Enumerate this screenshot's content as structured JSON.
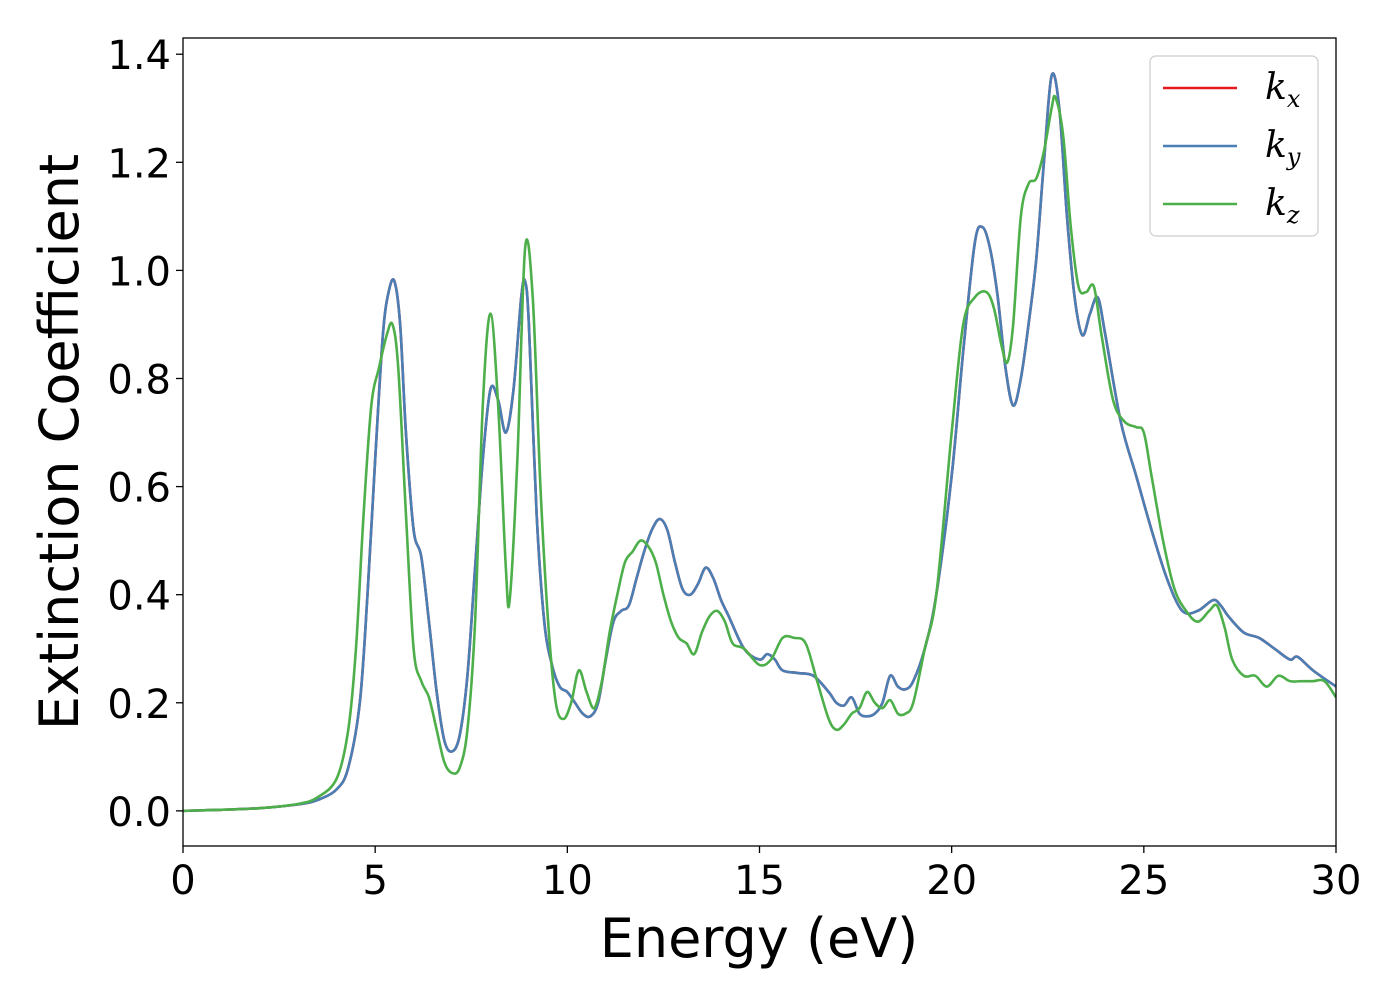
{
  "chart_data": {
    "type": "line",
    "xlabel": "Energy (eV)",
    "ylabel": "Extinction Coefficient",
    "xlim": [
      0,
      30
    ],
    "ylim": [
      -0.065,
      1.43
    ],
    "xticks": [
      "0",
      "5",
      "10",
      "15",
      "20",
      "25",
      "30"
    ],
    "yticks": [
      "0.0",
      "0.2",
      "0.4",
      "0.6",
      "0.8",
      "1.0",
      "1.2",
      "1.4"
    ],
    "grid": false,
    "legend_position": "top-right",
    "series": [
      {
        "name": "k",
        "name_sub": "x",
        "color": "#e41a1c",
        "x": [
          0,
          1,
          2,
          3,
          3.5,
          4,
          4.3,
          4.6,
          4.8,
          5.0,
          5.2,
          5.35,
          5.5,
          5.65,
          5.8,
          6.0,
          6.2,
          6.4,
          6.6,
          6.8,
          7.0,
          7.2,
          7.4,
          7.6,
          7.8,
          8.0,
          8.2,
          8.4,
          8.6,
          8.8,
          8.9,
          9.0,
          9.2,
          9.4,
          9.6,
          9.8,
          10.0,
          10.2,
          10.4,
          10.6,
          10.8,
          11.0,
          11.2,
          11.4,
          11.6,
          11.8,
          12.0,
          12.2,
          12.4,
          12.6,
          12.8,
          13.0,
          13.2,
          13.4,
          13.6,
          13.8,
          14.0,
          14.2,
          14.6,
          15.0,
          15.2,
          15.4,
          15.6,
          16.0,
          16.4,
          16.8,
          17.0,
          17.2,
          17.4,
          17.6,
          17.8,
          18.0,
          18.2,
          18.4,
          18.6,
          18.8,
          19.0,
          19.3,
          19.6,
          20.0,
          20.3,
          20.6,
          20.8,
          21.0,
          21.2,
          21.4,
          21.6,
          21.8,
          22.0,
          22.2,
          22.4,
          22.6,
          22.8,
          23.0,
          23.2,
          23.4,
          23.6,
          23.8,
          24.0,
          24.4,
          24.8,
          25.2,
          25.6,
          26.0,
          26.4,
          26.8,
          27.0,
          27.2,
          27.6,
          28.0,
          28.4,
          28.8,
          29.0,
          29.4,
          30.0
        ],
        "y": [
          0.0,
          0.002,
          0.005,
          0.012,
          0.02,
          0.04,
          0.08,
          0.2,
          0.4,
          0.65,
          0.88,
          0.96,
          0.98,
          0.9,
          0.7,
          0.52,
          0.47,
          0.35,
          0.22,
          0.13,
          0.11,
          0.14,
          0.25,
          0.45,
          0.65,
          0.78,
          0.76,
          0.7,
          0.78,
          0.95,
          0.98,
          0.9,
          0.55,
          0.35,
          0.27,
          0.23,
          0.22,
          0.2,
          0.18,
          0.175,
          0.2,
          0.28,
          0.35,
          0.37,
          0.38,
          0.43,
          0.48,
          0.52,
          0.54,
          0.52,
          0.46,
          0.41,
          0.4,
          0.42,
          0.45,
          0.43,
          0.39,
          0.36,
          0.3,
          0.28,
          0.29,
          0.28,
          0.26,
          0.255,
          0.25,
          0.22,
          0.2,
          0.195,
          0.21,
          0.18,
          0.175,
          0.18,
          0.2,
          0.25,
          0.23,
          0.225,
          0.24,
          0.3,
          0.4,
          0.62,
          0.85,
          1.05,
          1.08,
          1.04,
          0.95,
          0.82,
          0.75,
          0.8,
          0.9,
          1.02,
          1.2,
          1.36,
          1.3,
          1.1,
          0.95,
          0.88,
          0.92,
          0.95,
          0.88,
          0.72,
          0.62,
          0.52,
          0.43,
          0.37,
          0.37,
          0.39,
          0.38,
          0.36,
          0.33,
          0.32,
          0.3,
          0.28,
          0.285,
          0.26,
          0.23
        ]
      },
      {
        "name": "k",
        "name_sub": "y",
        "color": "#4a7fb5",
        "x": [
          0,
          1,
          2,
          3,
          3.5,
          4,
          4.3,
          4.6,
          4.8,
          5.0,
          5.2,
          5.35,
          5.5,
          5.65,
          5.8,
          6.0,
          6.2,
          6.4,
          6.6,
          6.8,
          7.0,
          7.2,
          7.4,
          7.6,
          7.8,
          8.0,
          8.2,
          8.4,
          8.6,
          8.8,
          8.9,
          9.0,
          9.2,
          9.4,
          9.6,
          9.8,
          10.0,
          10.2,
          10.4,
          10.6,
          10.8,
          11.0,
          11.2,
          11.4,
          11.6,
          11.8,
          12.0,
          12.2,
          12.4,
          12.6,
          12.8,
          13.0,
          13.2,
          13.4,
          13.6,
          13.8,
          14.0,
          14.2,
          14.6,
          15.0,
          15.2,
          15.4,
          15.6,
          16.0,
          16.4,
          16.8,
          17.0,
          17.2,
          17.4,
          17.6,
          17.8,
          18.0,
          18.2,
          18.4,
          18.6,
          18.8,
          19.0,
          19.3,
          19.6,
          20.0,
          20.3,
          20.6,
          20.8,
          21.0,
          21.2,
          21.4,
          21.6,
          21.8,
          22.0,
          22.2,
          22.4,
          22.6,
          22.8,
          23.0,
          23.2,
          23.4,
          23.6,
          23.8,
          24.0,
          24.4,
          24.8,
          25.2,
          25.6,
          26.0,
          26.4,
          26.8,
          27.0,
          27.2,
          27.6,
          28.0,
          28.4,
          28.8,
          29.0,
          29.4,
          30.0
        ],
        "y": [
          0.0,
          0.002,
          0.005,
          0.012,
          0.02,
          0.04,
          0.08,
          0.2,
          0.4,
          0.65,
          0.88,
          0.96,
          0.98,
          0.9,
          0.7,
          0.52,
          0.47,
          0.35,
          0.22,
          0.13,
          0.11,
          0.14,
          0.25,
          0.45,
          0.65,
          0.78,
          0.76,
          0.7,
          0.78,
          0.95,
          0.98,
          0.9,
          0.55,
          0.35,
          0.27,
          0.23,
          0.22,
          0.2,
          0.18,
          0.175,
          0.2,
          0.28,
          0.35,
          0.37,
          0.38,
          0.43,
          0.48,
          0.52,
          0.54,
          0.52,
          0.46,
          0.41,
          0.4,
          0.42,
          0.45,
          0.43,
          0.39,
          0.36,
          0.3,
          0.28,
          0.29,
          0.28,
          0.26,
          0.255,
          0.25,
          0.22,
          0.2,
          0.195,
          0.21,
          0.18,
          0.175,
          0.18,
          0.2,
          0.25,
          0.23,
          0.225,
          0.24,
          0.3,
          0.4,
          0.62,
          0.85,
          1.05,
          1.08,
          1.04,
          0.95,
          0.82,
          0.75,
          0.8,
          0.9,
          1.02,
          1.2,
          1.36,
          1.3,
          1.1,
          0.95,
          0.88,
          0.92,
          0.95,
          0.88,
          0.72,
          0.62,
          0.52,
          0.43,
          0.37,
          0.37,
          0.39,
          0.38,
          0.36,
          0.33,
          0.32,
          0.3,
          0.28,
          0.285,
          0.26,
          0.23
        ]
      },
      {
        "name": "k",
        "name_sub": "z",
        "color": "#4daf4a",
        "x": [
          0,
          1,
          2,
          3,
          3.5,
          4,
          4.3,
          4.5,
          4.7,
          4.9,
          5.1,
          5.3,
          5.45,
          5.6,
          5.8,
          6.0,
          6.2,
          6.4,
          6.6,
          6.8,
          7.0,
          7.2,
          7.4,
          7.6,
          7.8,
          8.0,
          8.2,
          8.4,
          8.5,
          8.7,
          8.9,
          9.1,
          9.3,
          9.5,
          9.7,
          9.9,
          10.1,
          10.3,
          10.5,
          10.7,
          10.9,
          11.1,
          11.3,
          11.5,
          11.7,
          11.9,
          12.1,
          12.3,
          12.5,
          12.7,
          12.9,
          13.1,
          13.3,
          13.5,
          13.7,
          13.9,
          14.1,
          14.3,
          14.6,
          15.0,
          15.3,
          15.6,
          15.9,
          16.2,
          16.5,
          16.8,
          17.0,
          17.2,
          17.4,
          17.6,
          17.8,
          18.0,
          18.2,
          18.4,
          18.6,
          18.8,
          19.0,
          19.3,
          19.6,
          20.0,
          20.3,
          20.6,
          20.9,
          21.1,
          21.3,
          21.45,
          21.6,
          21.8,
          22.0,
          22.2,
          22.4,
          22.6,
          22.7,
          22.9,
          23.1,
          23.3,
          23.5,
          23.7,
          23.9,
          24.2,
          24.5,
          24.8,
          25.0,
          25.2,
          25.5,
          25.8,
          26.1,
          26.4,
          26.7,
          26.9,
          27.1,
          27.3,
          27.6,
          27.9,
          28.2,
          28.5,
          28.8,
          29.1,
          29.4,
          29.7,
          30.0
        ],
        "y": [
          0.0,
          0.002,
          0.005,
          0.013,
          0.025,
          0.06,
          0.15,
          0.3,
          0.55,
          0.75,
          0.82,
          0.88,
          0.9,
          0.82,
          0.55,
          0.3,
          0.24,
          0.21,
          0.15,
          0.09,
          0.07,
          0.08,
          0.15,
          0.35,
          0.75,
          0.92,
          0.75,
          0.45,
          0.39,
          0.65,
          1.04,
          0.95,
          0.6,
          0.35,
          0.2,
          0.17,
          0.2,
          0.26,
          0.22,
          0.19,
          0.24,
          0.33,
          0.4,
          0.46,
          0.48,
          0.5,
          0.49,
          0.46,
          0.4,
          0.35,
          0.32,
          0.31,
          0.29,
          0.33,
          0.36,
          0.37,
          0.35,
          0.31,
          0.3,
          0.27,
          0.28,
          0.32,
          0.32,
          0.31,
          0.24,
          0.17,
          0.15,
          0.16,
          0.18,
          0.19,
          0.22,
          0.2,
          0.19,
          0.205,
          0.18,
          0.18,
          0.2,
          0.3,
          0.4,
          0.7,
          0.9,
          0.95,
          0.96,
          0.93,
          0.86,
          0.83,
          0.9,
          1.1,
          1.16,
          1.17,
          1.22,
          1.3,
          1.32,
          1.25,
          1.08,
          0.97,
          0.96,
          0.97,
          0.88,
          0.76,
          0.72,
          0.71,
          0.7,
          0.62,
          0.5,
          0.41,
          0.37,
          0.35,
          0.37,
          0.38,
          0.34,
          0.28,
          0.25,
          0.25,
          0.23,
          0.25,
          0.24,
          0.24,
          0.24,
          0.24,
          0.21
        ]
      }
    ]
  }
}
